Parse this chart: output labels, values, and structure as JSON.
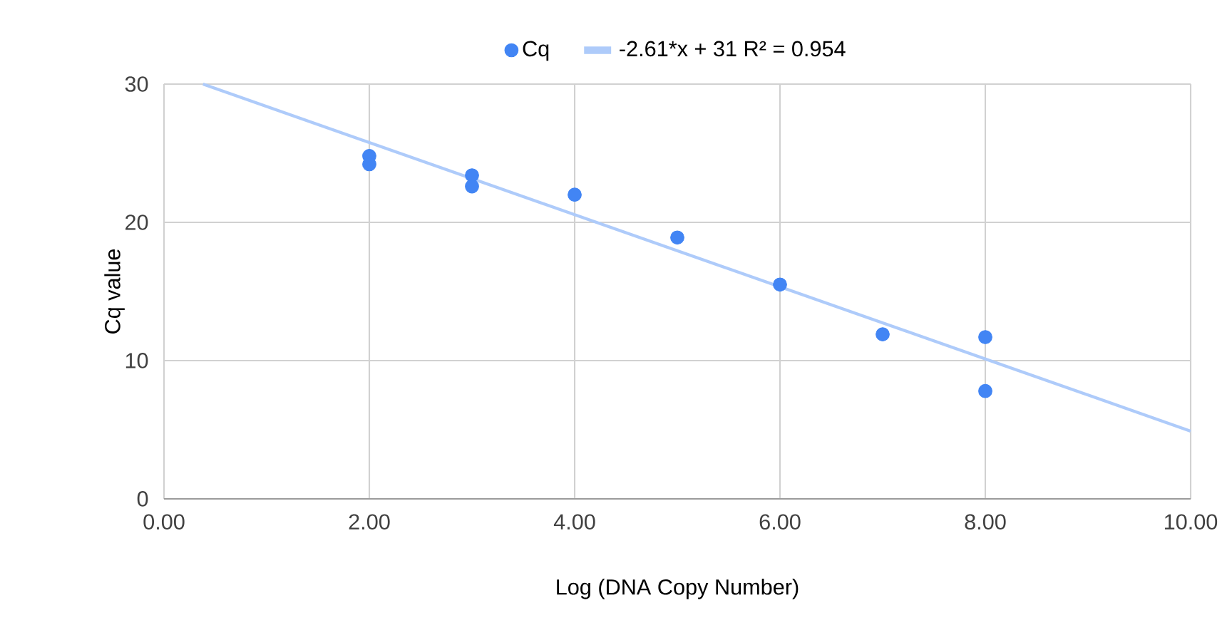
{
  "chart_data": {
    "type": "scatter",
    "xlabel": "Log  (DNA Copy Number)",
    "ylabel": "Cq value",
    "xlim": [
      0,
      10
    ],
    "ylim": [
      0,
      30
    ],
    "xticks": [
      {
        "value": 0,
        "label": "0.00"
      },
      {
        "value": 2,
        "label": "2.00"
      },
      {
        "value": 4,
        "label": "4.00"
      },
      {
        "value": 6,
        "label": "6.00"
      },
      {
        "value": 8,
        "label": "8.00"
      },
      {
        "value": 10,
        "label": "10.00"
      }
    ],
    "yticks": [
      0,
      10,
      20,
      30
    ],
    "grid": true,
    "legend": "top",
    "marker": "circle",
    "series": [
      {
        "name": "Cq",
        "color": "#4285f4",
        "x": [
          2,
          2,
          3,
          3,
          4,
          5,
          6,
          7,
          8,
          8
        ],
        "values": [
          24.8,
          24.2,
          23.4,
          22.6,
          22.0,
          18.9,
          15.5,
          11.9,
          11.7,
          7.8
        ]
      },
      {
        "name": "-2.61*x + 31 R² = 0.954",
        "type": "line",
        "marker": "none",
        "color": "#aecbfa",
        "x": [
          0.38,
          10
        ],
        "values": [
          30,
          4.9
        ]
      }
    ]
  }
}
